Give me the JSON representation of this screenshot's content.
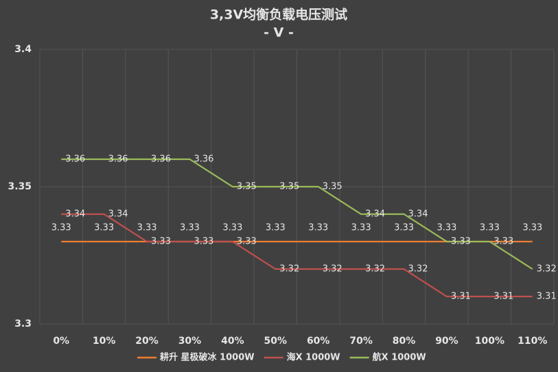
{
  "chart_data": {
    "type": "line",
    "title": "3,3V均衡负载电压测试",
    "subtitle": "- V -",
    "categories": [
      "0%",
      "10%",
      "20%",
      "30%",
      "40%",
      "50%",
      "60%",
      "70%",
      "80%",
      "90%",
      "100%",
      "110%"
    ],
    "series": [
      {
        "name": "耕升 星极破冰 1000W",
        "color": "#ed7d31",
        "values": [
          3.33,
          3.33,
          3.33,
          3.33,
          3.33,
          3.33,
          3.33,
          3.33,
          3.33,
          3.33,
          3.33,
          3.33
        ]
      },
      {
        "name": "海X 1000W",
        "color": "#c0504d",
        "values": [
          3.34,
          3.34,
          3.33,
          3.33,
          3.33,
          3.32,
          3.32,
          3.32,
          3.32,
          3.31,
          3.31,
          3.31
        ]
      },
      {
        "name": "航X 1000W",
        "color": "#9bbb59",
        "values": [
          3.36,
          3.36,
          3.36,
          3.36,
          3.35,
          3.35,
          3.35,
          3.34,
          3.34,
          3.33,
          3.33,
          3.32
        ]
      }
    ],
    "ylim": [
      3.3,
      3.4
    ],
    "yticks": [
      3.3,
      3.35,
      3.4
    ],
    "grid": true
  }
}
